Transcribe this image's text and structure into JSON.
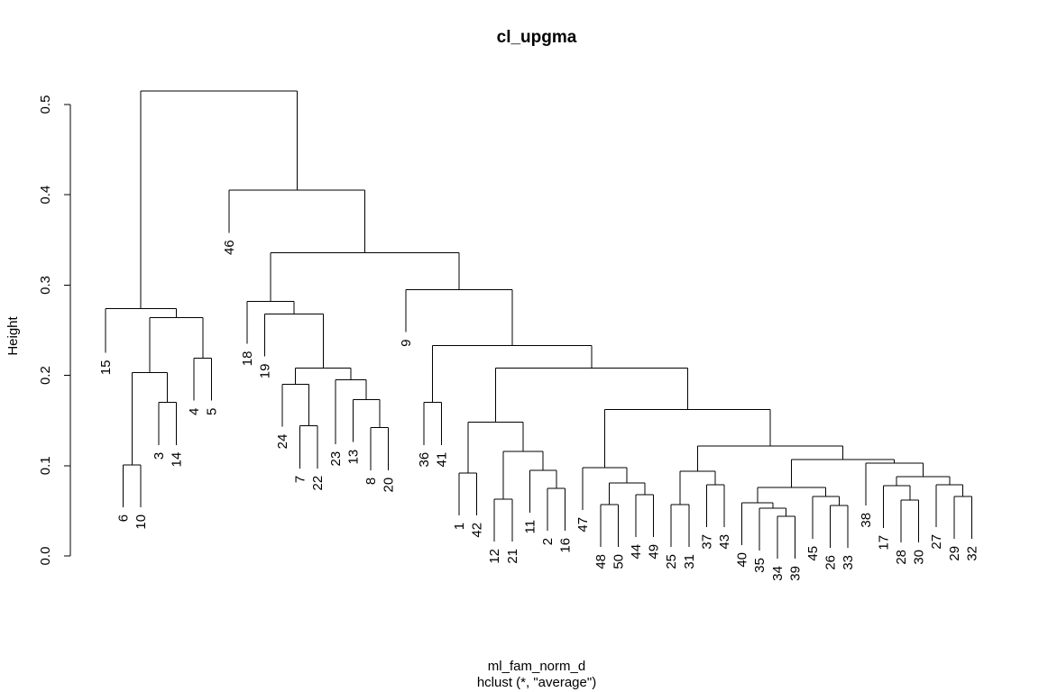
{
  "chart_data": {
    "type": "dendrogram",
    "title": "cl_upgma",
    "ylabel": "Height",
    "xlabel": "ml_fam_norm_d",
    "sub": "hclust (*, \"average\")",
    "ylim": [
      0,
      0.5
    ],
    "yticks": [
      0.0,
      0.1,
      0.2,
      0.3,
      0.4,
      0.5
    ],
    "ytick_labels": [
      "0.0",
      "0.1",
      "0.2",
      "0.3",
      "0.4",
      "0.5"
    ],
    "order": [
      15,
      6,
      10,
      3,
      14,
      4,
      5,
      46,
      18,
      19,
      24,
      7,
      22,
      23,
      13,
      8,
      20,
      9,
      36,
      41,
      1,
      42,
      12,
      21,
      11,
      2,
      16,
      47,
      48,
      50,
      44,
      49,
      25,
      31,
      37,
      43,
      40,
      35,
      34,
      39,
      45,
      26,
      33,
      38,
      17,
      28,
      30,
      27,
      29,
      32
    ],
    "merges": [
      {
        "a": "6",
        "b": "10",
        "h": 0.101
      },
      {
        "a": "3",
        "b": "14",
        "h": 0.17
      },
      {
        "a": "(6,10)",
        "b": "(3,14)",
        "h": 0.203
      },
      {
        "a": "4",
        "b": "5",
        "h": 0.219
      },
      {
        "a": "(6,10,3,14)",
        "b": "(4,5)",
        "h": 0.264
      },
      {
        "a": "15",
        "b": "(6,10,3,14,4,5)",
        "h": 0.274
      },
      {
        "a": "7",
        "b": "22",
        "h": 0.144
      },
      {
        "a": "8",
        "b": "20",
        "h": 0.142
      },
      {
        "a": "13",
        "b": "(8,20)",
        "h": 0.173
      },
      {
        "a": "24",
        "b": "(7,22)",
        "h": 0.19
      },
      {
        "a": "23",
        "b": "(13,8,20)",
        "h": 0.195
      },
      {
        "a": "(24,7,22)",
        "b": "(23,13,8,20)",
        "h": 0.208
      },
      {
        "a": "19",
        "b": "(24..20)",
        "h": 0.268
      },
      {
        "a": "18",
        "b": "(19..20)",
        "h": 0.282
      },
      {
        "a": "36",
        "b": "41",
        "h": 0.17
      },
      {
        "a": "1",
        "b": "42",
        "h": 0.092
      },
      {
        "a": "12",
        "b": "21",
        "h": 0.063
      },
      {
        "a": "2",
        "b": "16",
        "h": 0.075
      },
      {
        "a": "11",
        "b": "(2,16)",
        "h": 0.095
      },
      {
        "a": "(12,21)",
        "b": "(11,2,16)",
        "h": 0.116
      },
      {
        "a": "(1,42)",
        "b": "(12,21,11,2,16)",
        "h": 0.148
      },
      {
        "a": "48",
        "b": "50",
        "h": 0.057
      },
      {
        "a": "44",
        "b": "49",
        "h": 0.068
      },
      {
        "a": "(48,50)",
        "b": "(44,49)",
        "h": 0.081
      },
      {
        "a": "47",
        "b": "(48,50,44,49)",
        "h": 0.098
      },
      {
        "a": "25",
        "b": "31",
        "h": 0.057
      },
      {
        "a": "37",
        "b": "43",
        "h": 0.079
      },
      {
        "a": "(25,31)",
        "b": "(37,43)",
        "h": 0.094
      },
      {
        "a": "34",
        "b": "39",
        "h": 0.044
      },
      {
        "a": "35",
        "b": "(34,39)",
        "h": 0.053
      },
      {
        "a": "40",
        "b": "(35,34,39)",
        "h": 0.059
      },
      {
        "a": "26",
        "b": "33",
        "h": 0.056
      },
      {
        "a": "45",
        "b": "(26,33)",
        "h": 0.066
      },
      {
        "a": "(40,35,34,39)",
        "b": "(45,26,33)",
        "h": 0.076
      },
      {
        "a": "28",
        "b": "30",
        "h": 0.062
      },
      {
        "a": "17",
        "b": "(28,30)",
        "h": 0.078
      },
      {
        "a": "29",
        "b": "32",
        "h": 0.066
      },
      {
        "a": "27",
        "b": "(29,32)",
        "h": 0.079
      },
      {
        "a": "(17,28,30)",
        "b": "(27,29,32)",
        "h": 0.088
      },
      {
        "a": "38",
        "b": "(17..32)",
        "h": 0.103
      },
      {
        "a": "(40..33)",
        "b": "(38..32)",
        "h": 0.107
      },
      {
        "a": "(25,31,37,43)",
        "b": "(40..32)",
        "h": 0.122
      },
      {
        "a": "(47..49)",
        "b": "(25..32)",
        "h": 0.162
      },
      {
        "a": "(1..16)",
        "b": "(47..32)",
        "h": 0.208
      },
      {
        "a": "(36,41)",
        "b": "(1..32)",
        "h": 0.233
      },
      {
        "a": "9",
        "b": "(36..32)",
        "h": 0.295
      },
      {
        "a": "(18..20)",
        "b": "(9..32)",
        "h": 0.336
      },
      {
        "a": "46",
        "b": "(18..32)",
        "h": 0.405
      },
      {
        "a": "(15..5)",
        "b": "(46..32)",
        "h": 0.515
      }
    ],
    "leaf_heights": {
      "15": 0.225,
      "6": 0.054,
      "10": 0.054,
      "3": 0.123,
      "14": 0.123,
      "4": 0.172,
      "5": 0.172,
      "46": 0.358,
      "18": 0.235,
      "19": 0.221,
      "24": 0.143,
      "7": 0.097,
      "22": 0.097,
      "23": 0.124,
      "13": 0.126,
      "8": 0.095,
      "20": 0.095,
      "9": 0.248,
      "36": 0.123,
      "41": 0.123,
      "1": 0.045,
      "42": 0.045,
      "12": 0.016,
      "21": 0.016,
      "11": 0.048,
      "2": 0.028,
      "16": 0.028,
      "47": 0.051,
      "48": 0.01,
      "50": 0.01,
      "44": 0.021,
      "49": 0.021,
      "25": 0.01,
      "31": 0.01,
      "37": 0.032,
      "43": 0.032,
      "40": 0.012,
      "35": 0.006,
      "34": -0.003,
      "39": -0.003,
      "45": 0.019,
      "26": 0.009,
      "33": 0.009,
      "38": 0.056,
      "17": 0.031,
      "28": 0.015,
      "30": 0.015,
      "27": 0.032,
      "29": 0.019,
      "32": 0.019
    }
  }
}
